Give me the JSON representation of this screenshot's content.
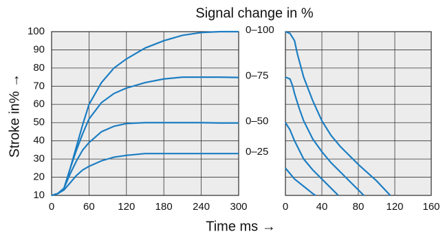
{
  "chart_data": [
    {
      "type": "line",
      "title": "Signal change in %",
      "ylabel": "Stroke in% →",
      "xlabel": "Time ms →",
      "xlim": [
        0,
        300
      ],
      "xticks": [
        0,
        60,
        120,
        180,
        240,
        300
      ],
      "ylim": [
        10,
        100
      ],
      "yticks": [
        10,
        20,
        30,
        40,
        50,
        60,
        70,
        80,
        90,
        100
      ],
      "grid": true,
      "series": [
        {
          "name": "0–100",
          "color": "#1b7dc2",
          "x": [
            0,
            10,
            20,
            30,
            40,
            50,
            60,
            80,
            100,
            120,
            150,
            180,
            210,
            240,
            270,
            300
          ],
          "values": [
            10,
            11,
            14,
            25,
            37,
            49,
            60,
            72,
            80,
            85,
            91,
            95,
            98,
            99.5,
            100,
            100
          ]
        },
        {
          "name": "0–75",
          "color": "#1b7dc2",
          "x": [
            0,
            10,
            20,
            30,
            40,
            50,
            60,
            80,
            100,
            120,
            150,
            180,
            210,
            240,
            270,
            300
          ],
          "values": [
            10,
            11,
            14,
            25,
            35,
            44,
            52,
            61,
            66,
            69,
            72,
            74,
            75,
            75,
            75,
            74.8
          ]
        },
        {
          "name": "0–50",
          "color": "#1b7dc2",
          "x": [
            0,
            10,
            20,
            30,
            40,
            50,
            60,
            80,
            100,
            120,
            150,
            180,
            210,
            240,
            270,
            300
          ],
          "values": [
            10,
            11,
            14,
            22,
            29,
            35,
            39,
            45,
            48,
            49.5,
            50,
            50,
            50,
            50,
            49.8,
            49.8
          ]
        },
        {
          "name": "0–25",
          "color": "#1b7dc2",
          "x": [
            0,
            10,
            20,
            30,
            40,
            50,
            60,
            80,
            100,
            120,
            150,
            180,
            210,
            240,
            270,
            300
          ],
          "values": [
            10,
            11,
            13,
            17,
            21,
            24,
            26,
            29,
            31,
            32,
            33,
            33,
            33,
            33,
            33,
            33
          ]
        }
      ]
    },
    {
      "type": "line",
      "xlim": [
        0,
        160
      ],
      "xticks": [
        0,
        40,
        80,
        120,
        160
      ],
      "ylim": [
        10,
        100
      ],
      "grid": true,
      "series": [
        {
          "color": "#1b7dc2",
          "x": [
            0,
            5,
            10,
            13,
            20,
            30,
            40,
            50,
            60,
            80,
            100,
            115
          ],
          "values": [
            100,
            99,
            95,
            88,
            75,
            62,
            51,
            43,
            37,
            27,
            18,
            10
          ]
        },
        {
          "color": "#1b7dc2",
          "x": [
            0,
            5,
            8,
            10,
            15,
            20,
            30,
            40,
            50,
            60,
            70,
            80,
            86
          ],
          "values": [
            75,
            74,
            70,
            66,
            58,
            51,
            41,
            34,
            28,
            23,
            18,
            13,
            10
          ]
        },
        {
          "color": "#1b7dc2",
          "x": [
            0,
            5,
            10,
            15,
            20,
            30,
            40,
            50,
            58
          ],
          "values": [
            50,
            46,
            40,
            35,
            30,
            24,
            19,
            14,
            10
          ]
        },
        {
          "color": "#1b7dc2",
          "x": [
            0,
            5,
            10,
            20,
            30,
            33
          ],
          "values": [
            25,
            22,
            19,
            15,
            11,
            10
          ]
        }
      ]
    }
  ]
}
